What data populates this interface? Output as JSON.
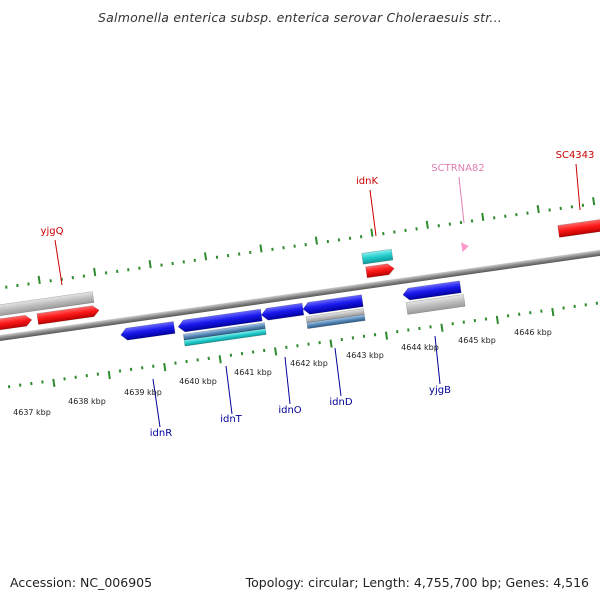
{
  "title": "Salmonella enterica subsp. enterica serovar Choleraesuis str...",
  "accession": "Accession: NC_006905",
  "summary": "Topology: circular; Length: 4,755,700 bp; Genes: 4,516",
  "colors": {
    "backbone": "#8a8a8a",
    "tick": "#2e8b2e",
    "forward_gene": "#ff1a1a",
    "reverse_gene": "#1a1aee",
    "cds": "#bdbdbd",
    "rna": "#22cccc",
    "trna": "#ff99cc",
    "forward_label": "#cc0000",
    "reverse_label": "#000099",
    "trna_label": "#e080b0"
  },
  "kbp_labels": [
    "4637 kbp",
    "4638 kbp",
    "4639 kbp",
    "4640 kbp",
    "4641 kbp",
    "4642 kbp",
    "4643 kbp",
    "4644 kbp",
    "4645 kbp",
    "4646 kbp"
  ],
  "genes": [
    {
      "name": "yjgQ",
      "strand": "forward"
    },
    {
      "name": "idnK",
      "strand": "forward"
    },
    {
      "name": "SCTRNA82",
      "strand": "forward"
    },
    {
      "name": "SC4343",
      "strand": "forward"
    },
    {
      "name": "idnR",
      "strand": "reverse"
    },
    {
      "name": "idnT",
      "strand": "reverse"
    },
    {
      "name": "idnO",
      "strand": "reverse"
    },
    {
      "name": "idnD",
      "strand": "reverse"
    },
    {
      "name": "yjgB",
      "strand": "reverse"
    }
  ]
}
